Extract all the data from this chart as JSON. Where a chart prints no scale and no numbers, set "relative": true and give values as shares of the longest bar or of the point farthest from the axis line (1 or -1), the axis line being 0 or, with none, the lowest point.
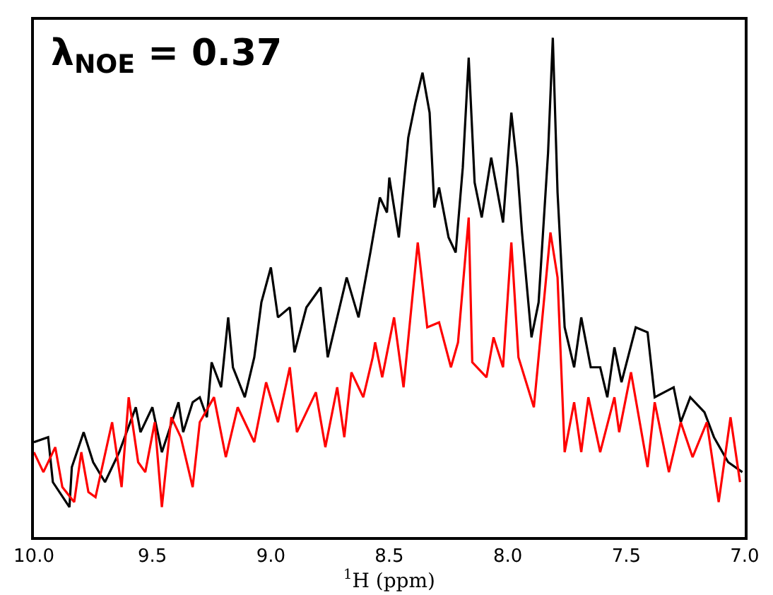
{
  "chart_data": {
    "type": "line",
    "relative": true,
    "xlabel": "$^{1}$H (ppm)",
    "annotations": [
      "λ$_{NOE}$ = 0.37"
    ],
    "xlim": [
      10.0,
      7.0
    ],
    "xticks": [
      {
        "value": 10.0,
        "label": "10.0"
      },
      {
        "value": 9.5,
        "label": "9.5"
      },
      {
        "value": 9.0,
        "label": "9.0"
      },
      {
        "value": 8.5,
        "label": "8.5"
      },
      {
        "value": 8.0,
        "label": "8.0"
      },
      {
        "value": 7.5,
        "label": "7.5"
      },
      {
        "value": 7.0,
        "label": "7.0"
      }
    ],
    "tick_labels": "x",
    "marker": "none",
    "line_style": "solid",
    "series": [
      {
        "color": "#000000",
        "x": [
          10.0,
          9.94,
          9.92,
          9.85,
          9.84,
          9.79,
          9.75,
          9.7,
          9.64,
          9.57,
          9.55,
          9.5,
          9.46,
          9.39,
          9.37,
          9.33,
          9.3,
          9.27,
          9.25,
          9.21,
          9.18,
          9.16,
          9.11,
          9.07,
          9.04,
          9.0,
          8.97,
          8.92,
          8.9,
          8.85,
          8.79,
          8.76,
          8.68,
          8.63,
          8.58,
          8.54,
          8.51,
          8.5,
          8.46,
          8.42,
          8.39,
          8.36,
          8.33,
          8.31,
          8.29,
          8.25,
          8.22,
          8.19,
          8.165,
          8.14,
          8.11,
          8.07,
          8.02,
          7.985,
          7.96,
          7.94,
          7.9,
          7.87,
          7.83,
          7.81,
          7.79,
          7.76,
          7.72,
          7.69,
          7.65,
          7.61,
          7.58,
          7.55,
          7.52,
          7.46,
          7.41,
          7.38,
          7.34,
          7.3,
          7.27,
          7.23,
          7.17,
          7.13,
          7.07,
          7.01
        ],
        "values": [
          0.19,
          0.2,
          0.11,
          0.06,
          0.14,
          0.21,
          0.15,
          0.11,
          0.17,
          0.26,
          0.21,
          0.26,
          0.17,
          0.27,
          0.21,
          0.27,
          0.28,
          0.24,
          0.35,
          0.3,
          0.44,
          0.34,
          0.28,
          0.36,
          0.47,
          0.54,
          0.44,
          0.46,
          0.37,
          0.46,
          0.5,
          0.36,
          0.52,
          0.44,
          0.57,
          0.68,
          0.65,
          0.72,
          0.6,
          0.8,
          0.87,
          0.93,
          0.85,
          0.66,
          0.7,
          0.6,
          0.57,
          0.74,
          0.96,
          0.71,
          0.64,
          0.76,
          0.63,
          0.85,
          0.74,
          0.61,
          0.4,
          0.47,
          0.77,
          1.0,
          0.69,
          0.42,
          0.34,
          0.44,
          0.34,
          0.34,
          0.28,
          0.38,
          0.31,
          0.42,
          0.41,
          0.28,
          0.29,
          0.3,
          0.23,
          0.28,
          0.25,
          0.2,
          0.15,
          0.13
        ]
      },
      {
        "color": "#ff0000",
        "x": [
          10.0,
          9.96,
          9.91,
          9.88,
          9.83,
          9.8,
          9.77,
          9.74,
          9.67,
          9.63,
          9.6,
          9.56,
          9.53,
          9.49,
          9.46,
          9.42,
          9.38,
          9.33,
          9.3,
          9.24,
          9.19,
          9.14,
          9.07,
          9.02,
          8.97,
          8.92,
          8.89,
          8.81,
          8.77,
          8.72,
          8.69,
          8.66,
          8.61,
          8.57,
          8.56,
          8.53,
          8.48,
          8.44,
          8.38,
          8.34,
          8.29,
          8.24,
          8.21,
          8.165,
          8.15,
          8.09,
          8.06,
          8.02,
          7.985,
          7.955,
          7.89,
          7.82,
          7.79,
          7.76,
          7.72,
          7.69,
          7.66,
          7.61,
          7.55,
          7.53,
          7.48,
          7.41,
          7.38,
          7.32,
          7.27,
          7.22,
          7.16,
          7.11,
          7.06,
          7.02
        ],
        "values": [
          0.17,
          0.13,
          0.18,
          0.1,
          0.07,
          0.17,
          0.09,
          0.08,
          0.23,
          0.1,
          0.28,
          0.15,
          0.13,
          0.23,
          0.06,
          0.24,
          0.2,
          0.1,
          0.23,
          0.28,
          0.16,
          0.26,
          0.19,
          0.31,
          0.23,
          0.34,
          0.21,
          0.29,
          0.18,
          0.3,
          0.2,
          0.33,
          0.28,
          0.36,
          0.39,
          0.32,
          0.44,
          0.3,
          0.59,
          0.42,
          0.43,
          0.34,
          0.39,
          0.64,
          0.35,
          0.32,
          0.4,
          0.34,
          0.59,
          0.36,
          0.26,
          0.61,
          0.52,
          0.17,
          0.27,
          0.17,
          0.28,
          0.17,
          0.28,
          0.21,
          0.33,
          0.14,
          0.27,
          0.13,
          0.23,
          0.16,
          0.23,
          0.07,
          0.24,
          0.11
        ]
      }
    ]
  }
}
